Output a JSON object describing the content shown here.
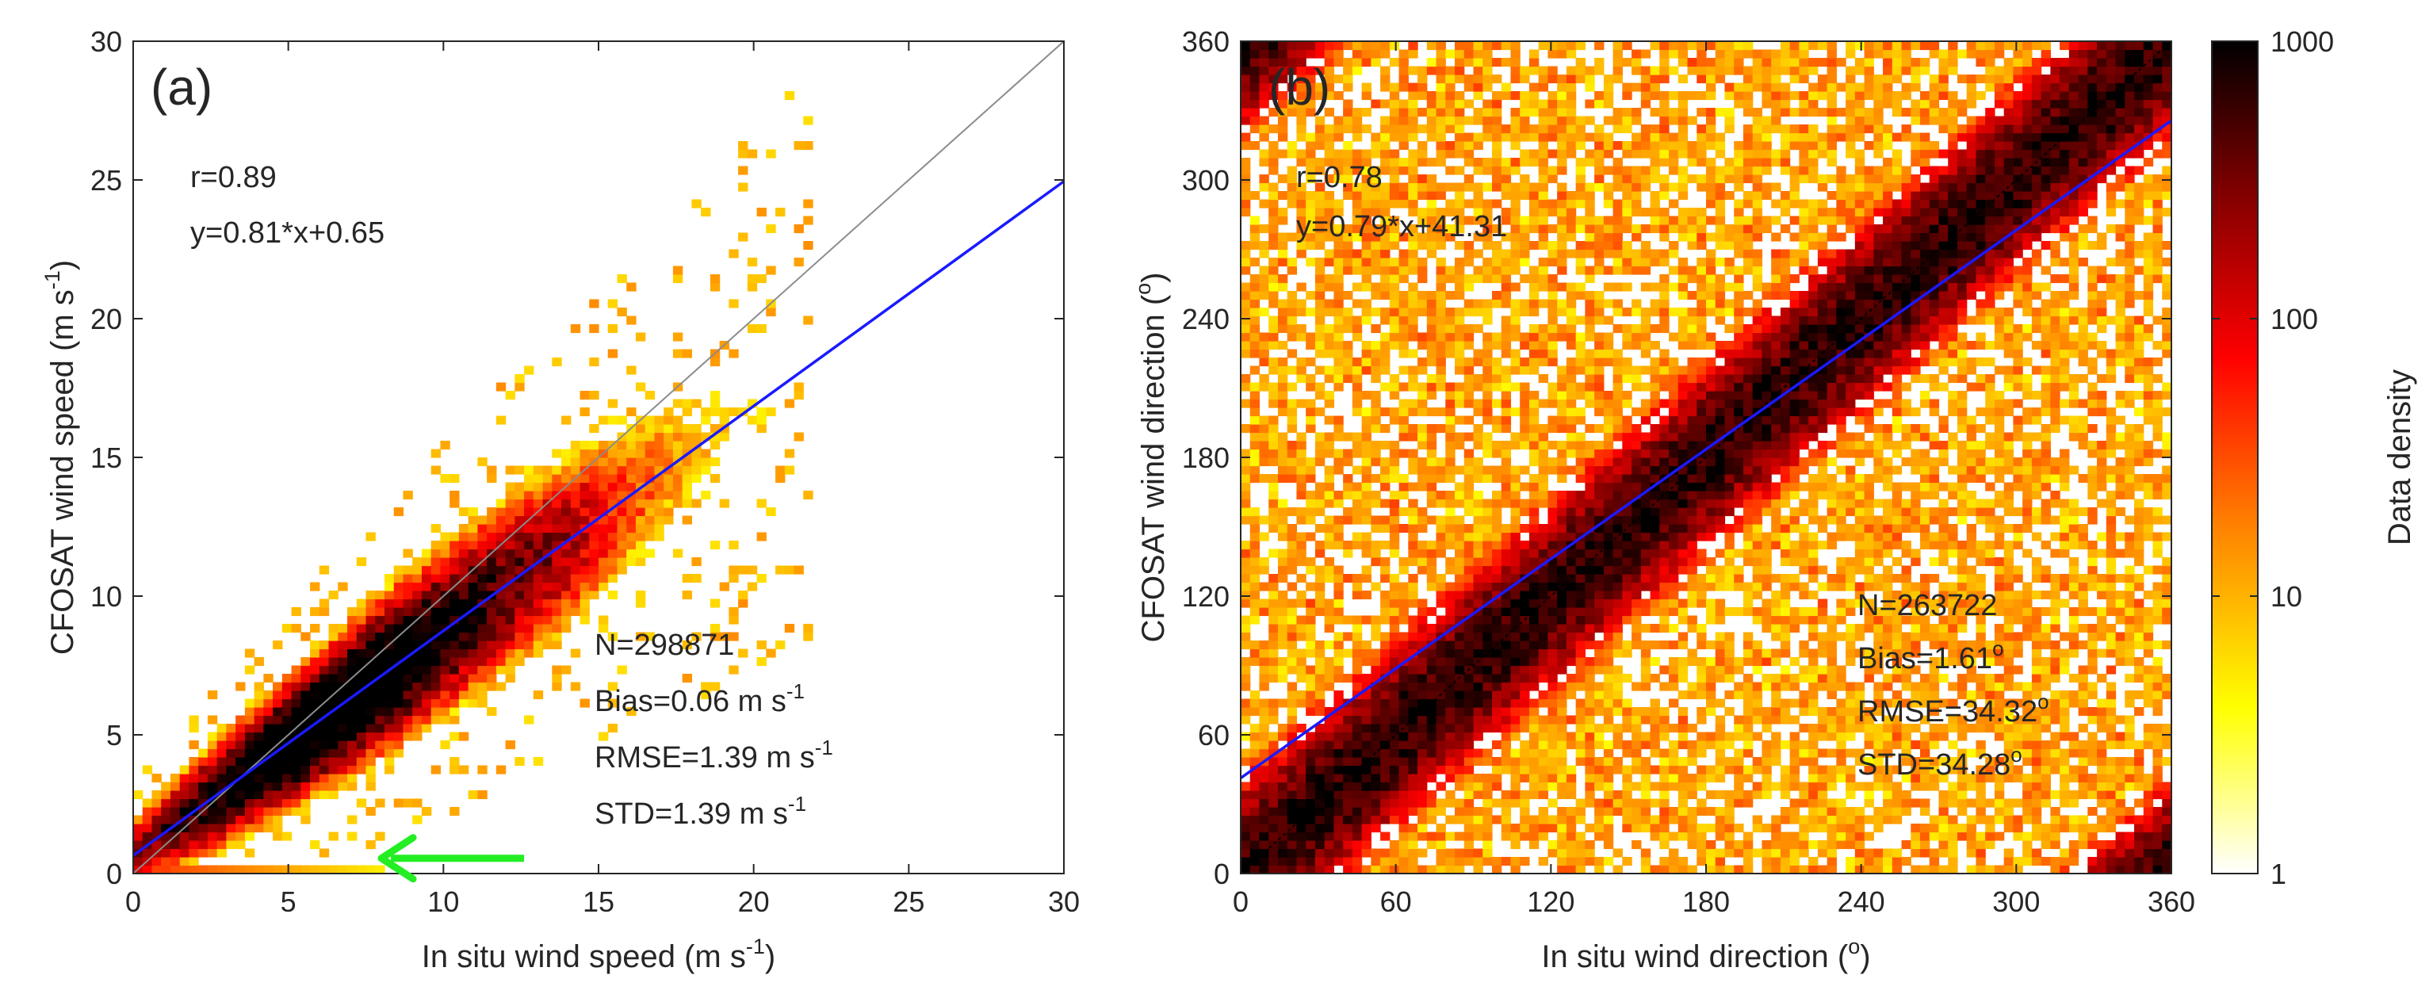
{
  "chart_data": [
    {
      "type": "heatmap",
      "panel_label": "(a)",
      "title": "",
      "xlabel": "In situ wind speed (m s",
      "xlabel_sup": "-1",
      "xlabel_close": ")",
      "ylabel": "CFOSAT wind speed (m s",
      "ylabel_sup": "-1",
      "ylabel_close": ")",
      "xlim": [
        0,
        30
      ],
      "ylim": [
        0,
        30
      ],
      "xticks": [
        0,
        5,
        10,
        15,
        20,
        25,
        30
      ],
      "yticks": [
        0,
        5,
        10,
        15,
        20,
        25,
        30
      ],
      "density_ridge": {
        "slope": 0.81,
        "intercept": 0.65,
        "core_max_x": 14,
        "spread": 1.1,
        "tail_max_x": 22
      },
      "low_speed_band": {
        "y": 0.35,
        "x_from": 0,
        "x_to": 8
      },
      "one_to_one_line": {
        "x": [
          0,
          30
        ],
        "y": [
          0,
          30
        ],
        "color": "#8c8c8c"
      },
      "fit_line": {
        "slope": 0.81,
        "intercept": 0.65,
        "color": "#1a1aff"
      },
      "annotations": {
        "r": "r=0.89",
        "fit": "y=0.81*x+0.65",
        "n": "N=298871",
        "bias": "Bias=0.06 m s",
        "bias_sup": "-1",
        "rmse": "RMSE=1.39 m s",
        "rmse_sup": "-1",
        "std": "STD=1.39 m s",
        "std_sup": "-1"
      },
      "arrow": {
        "from_x": 12.6,
        "to_x": 8.0,
        "y": 0.55,
        "color": "#22ee22"
      }
    },
    {
      "type": "heatmap",
      "panel_label": "(b)",
      "title": "",
      "xlabel": "In situ wind direction (",
      "xlabel_sup": "o",
      "xlabel_close": ")",
      "ylabel": "CFOSAT wind direction (",
      "ylabel_sup": "o",
      "ylabel_close": ")",
      "xlim": [
        0,
        360
      ],
      "ylim": [
        0,
        360
      ],
      "xticks": [
        0,
        60,
        120,
        180,
        240,
        300,
        360
      ],
      "yticks": [
        0,
        60,
        120,
        180,
        240,
        300,
        360
      ],
      "density_ridge": {
        "slope": 1.0,
        "intercept": 0,
        "spread": 22
      },
      "one_to_one_line": {
        "x": [
          0,
          360
        ],
        "y": [
          0,
          360
        ],
        "color": "#000000"
      },
      "fit_line": {
        "slope": 0.79,
        "intercept": 41.31,
        "color": "#1a1aff"
      },
      "annotations": {
        "r": "r=0.78",
        "fit": "y=0.79*x+41.31",
        "n": "N=263722",
        "bias": "Bias=1.61",
        "bias_sup": "o",
        "rmse": "RMSE=34.32",
        "rmse_sup": "o",
        "std": "STD=34.28",
        "std_sup": "o"
      }
    }
  ],
  "colorbar": {
    "label": "Data density",
    "scale": "log",
    "range": [
      1,
      1000
    ],
    "ticks": [
      1,
      10,
      100,
      1000
    ],
    "tick_labels": [
      "1",
      "10",
      "100",
      "1000"
    ],
    "colors": [
      "#ffffff",
      "#ffff00",
      "#ff8000",
      "#ff0000",
      "#800000",
      "#000000"
    ]
  }
}
